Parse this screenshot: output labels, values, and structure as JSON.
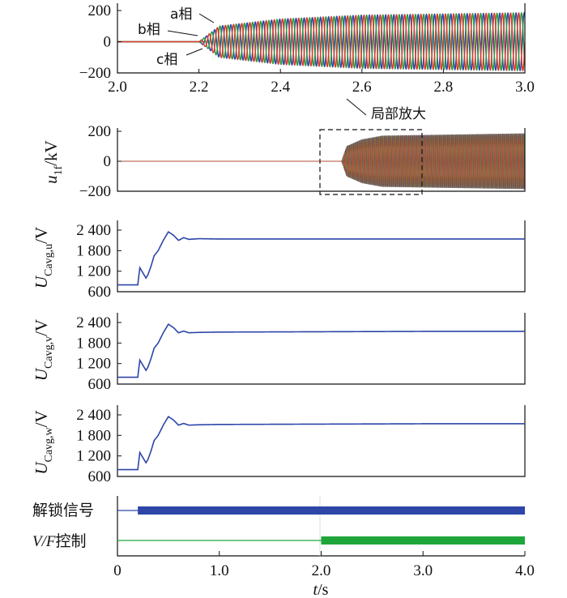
{
  "chart_data": [
    {
      "type": "line",
      "title": "",
      "xlabel": "",
      "ylabel": "",
      "xlim": [
        2.0,
        3.0
      ],
      "ylim": [
        -200,
        200
      ],
      "x_ticks": [
        "2.0",
        "2.2",
        "2.4",
        "2.6",
        "2.8",
        "3.0"
      ],
      "y_ticks": [
        "200",
        "0",
        "−200"
      ],
      "deblock_time": 2.2,
      "amplitude": {
        "t": [
          2.2,
          2.25,
          2.4,
          2.6,
          3.0
        ],
        "kV": [
          0,
          100,
          145,
          170,
          185
        ]
      },
      "series": [
        {
          "name": "a相",
          "color": "#d93a2b"
        },
        {
          "name": "b相",
          "color": "#2e9a3c"
        },
        {
          "name": "c相",
          "color": "#2d46a8"
        }
      ],
      "annotations": [
        "a相",
        "b相",
        "c相"
      ]
    },
    {
      "type": "line",
      "ylabel_main": "u",
      "ylabel_sub": "1f",
      "ylabel_unit": "/kV",
      "xlim": [
        0,
        4.0
      ],
      "ylim": [
        -200,
        200
      ],
      "y_ticks": [
        "200",
        "0",
        "−200"
      ],
      "deblock_time": 2.2,
      "amplitude": {
        "t": [
          2.2,
          2.25,
          2.4,
          2.6,
          4.0
        ],
        "kV": [
          0,
          100,
          145,
          170,
          185
        ]
      },
      "zoom_box": {
        "x_range": [
          2.0,
          3.0
        ],
        "y_range": [
          -200,
          200
        ]
      },
      "annotation": "局部放大",
      "series_colors": [
        "#d93a2b",
        "#2e9a3c",
        "#2d46a8"
      ]
    },
    {
      "type": "line",
      "ylabel_main": "U",
      "ylabel_sub": "Cavg,u",
      "ylabel_unit": "/V",
      "xlim": [
        0,
        4.0
      ],
      "ylim": [
        600,
        2600
      ],
      "y_ticks": [
        "2 400",
        "1 800",
        "1 200",
        "600"
      ],
      "series": [
        {
          "color": "#2d46a8",
          "x": [
            0,
            0.2,
            0.2,
            0.22,
            0.25,
            0.28,
            0.3,
            0.33,
            0.36,
            0.4,
            0.45,
            0.5,
            0.55,
            0.6,
            0.65,
            0.7,
            0.8,
            1.0,
            2.0,
            3.0,
            4.0
          ],
          "y": [
            800,
            800,
            830,
            1300,
            1150,
            1000,
            1100,
            1350,
            1650,
            1800,
            2100,
            2350,
            2250,
            2100,
            2180,
            2130,
            2150,
            2140,
            2140,
            2140,
            2140
          ]
        }
      ]
    },
    {
      "type": "line",
      "ylabel_main": "U",
      "ylabel_sub": "Cavg,v",
      "ylabel_unit": "/V",
      "xlim": [
        0,
        4.0
      ],
      "ylim": [
        600,
        2600
      ],
      "y_ticks": [
        "2 400",
        "1 800",
        "1 200",
        "600"
      ],
      "series": [
        {
          "color": "#2d46a8",
          "x": [
            0,
            0.2,
            0.2,
            0.22,
            0.25,
            0.28,
            0.3,
            0.33,
            0.36,
            0.4,
            0.45,
            0.5,
            0.55,
            0.6,
            0.65,
            0.7,
            0.8,
            1.0,
            2.0,
            3.0,
            4.0
          ],
          "y": [
            800,
            800,
            830,
            1300,
            1150,
            1000,
            1100,
            1350,
            1650,
            1800,
            2100,
            2350,
            2250,
            2100,
            2150,
            2100,
            2110,
            2120,
            2130,
            2140,
            2140
          ]
        }
      ]
    },
    {
      "type": "line",
      "ylabel_main": "U",
      "ylabel_sub": "Cavg,w",
      "ylabel_unit": "/V",
      "xlim": [
        0,
        4.0
      ],
      "ylim": [
        600,
        2600
      ],
      "y_ticks": [
        "2 400",
        "1 800",
        "1 200",
        "600"
      ],
      "x_ticks": [
        "0",
        "1.0",
        "2.0",
        "3.0",
        "4.0"
      ],
      "series": [
        {
          "color": "#2d46a8",
          "x": [
            0,
            0.2,
            0.2,
            0.22,
            0.25,
            0.28,
            0.3,
            0.33,
            0.36,
            0.4,
            0.45,
            0.5,
            0.55,
            0.6,
            0.65,
            0.7,
            0.8,
            1.0,
            2.0,
            3.0,
            4.0
          ],
          "y": [
            800,
            800,
            830,
            1300,
            1150,
            1000,
            1100,
            1350,
            1650,
            1800,
            2100,
            2350,
            2250,
            2100,
            2150,
            2100,
            2110,
            2120,
            2130,
            2140,
            2140
          ]
        }
      ]
    },
    {
      "type": "line",
      "xlim": [
        0,
        4.0
      ],
      "x_ticks": [
        "0",
        "1.0",
        "2.0",
        "3.0",
        "4.0"
      ],
      "xlabel_italic": "t",
      "xlabel_unit": "/s",
      "signals": [
        {
          "label": "解锁信号",
          "on_time": 0.2,
          "color": "#2d46a8"
        },
        {
          "label_italic": "V/F",
          "label": "控制",
          "on_time": 2.0,
          "color": "#1fa63a"
        }
      ]
    }
  ]
}
